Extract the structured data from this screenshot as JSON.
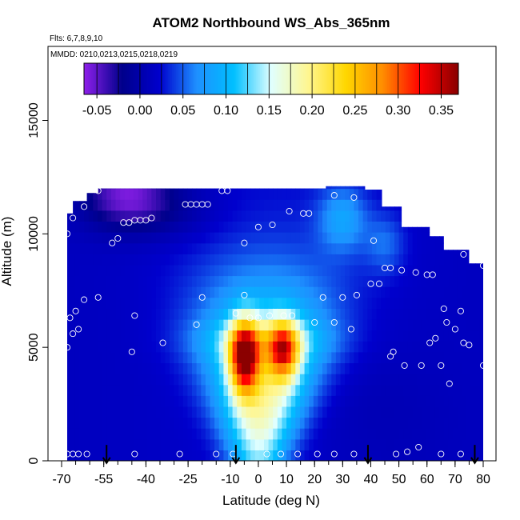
{
  "chart_data": {
    "type": "heatmap",
    "title": "ATOM2 Northbound WS_Abs_365nm",
    "flights_note": "Flts: 6,7,8,9,10",
    "dates_note": "MMDD: 0210,0213,0215,0218,0219",
    "xlabel": "Latitude (deg N)",
    "ylabel": "Altitude (m)",
    "xlim": [
      -70,
      80
    ],
    "ylim": [
      0,
      17500
    ],
    "x_ticks": [
      -70,
      -55,
      -40,
      -25,
      -10,
      0,
      10,
      20,
      30,
      40,
      50,
      60,
      70,
      80
    ],
    "x_tick_labels": [
      "-70",
      "-55",
      "-40",
      "-25",
      "-10",
      "0",
      "10",
      "20",
      "30",
      "40",
      "50",
      "60",
      "70",
      "80"
    ],
    "y_ticks": [
      0,
      5000,
      10000,
      15000
    ],
    "y_tick_labels": [
      "0",
      "5000",
      "10000",
      "15000"
    ],
    "colorbar": {
      "range": [
        -0.065,
        0.37
      ],
      "ticks": [
        -0.05,
        0.0,
        0.05,
        0.1,
        0.15,
        0.2,
        0.25,
        0.3,
        0.35
      ],
      "tick_labels": [
        "-0.05",
        "0.00",
        "0.05",
        "0.10",
        "0.15",
        "0.20",
        "0.25",
        "0.30",
        "0.35"
      ],
      "colors": [
        "#8b1fe8",
        "#00008b",
        "#0000cd",
        "#1e90ff",
        "#00bfff",
        "#e0ffff",
        "#fff68f",
        "#ffd700",
        "#ff8c00",
        "#ff0000",
        "#8b0000"
      ]
    },
    "descent_arrows_lat": [
      -54,
      -8,
      39,
      77
    ],
    "sample_points": [
      [
        -68,
        300
      ],
      [
        -66,
        300
      ],
      [
        -64,
        300
      ],
      [
        -61,
        300
      ],
      [
        -44,
        300
      ],
      [
        -28,
        300
      ],
      [
        -15,
        300
      ],
      [
        -9,
        300
      ],
      [
        3,
        300
      ],
      [
        8,
        300
      ],
      [
        14,
        300
      ],
      [
        21,
        300
      ],
      [
        27,
        300
      ],
      [
        34,
        300
      ],
      [
        49,
        300
      ],
      [
        53,
        400
      ],
      [
        57,
        600
      ],
      [
        65,
        300
      ],
      [
        72,
        300
      ],
      [
        -68,
        5000
      ],
      [
        -67,
        6300
      ],
      [
        -66,
        5600
      ],
      [
        -65,
        6600
      ],
      [
        -64,
        5800
      ],
      [
        -62,
        7100
      ],
      [
        -57,
        7200
      ],
      [
        -45,
        4800
      ],
      [
        -44,
        6400
      ],
      [
        -34,
        5200
      ],
      [
        -22,
        6000
      ],
      [
        -20,
        7200
      ],
      [
        -8,
        6500
      ],
      [
        -5,
        7300
      ],
      [
        -3,
        6300
      ],
      [
        0,
        6300
      ],
      [
        4,
        6400
      ],
      [
        9,
        6400
      ],
      [
        12,
        6400
      ],
      [
        20,
        6100
      ],
      [
        23,
        7200
      ],
      [
        27,
        6100
      ],
      [
        30,
        7200
      ],
      [
        33,
        5800
      ],
      [
        35,
        7300
      ],
      [
        40,
        7800
      ],
      [
        47,
        4600
      ],
      [
        48,
        4800
      ],
      [
        52,
        4200
      ],
      [
        58,
        4200
      ],
      [
        60,
        8200
      ],
      [
        61,
        5200
      ],
      [
        63,
        5400
      ],
      [
        65,
        4200
      ],
      [
        66,
        6700
      ],
      [
        67,
        6100
      ],
      [
        68,
        3400
      ],
      [
        70,
        5800
      ],
      [
        72,
        6600
      ],
      [
        73,
        5200
      ],
      [
        75,
        5100
      ],
      [
        80,
        4200
      ],
      [
        80,
        8600
      ],
      [
        -68,
        10000
      ],
      [
        -66,
        10700
      ],
      [
        -62,
        11200
      ],
      [
        -57,
        11900
      ],
      [
        -52,
        9600
      ],
      [
        -50,
        9800
      ],
      [
        -48,
        10500
      ],
      [
        -46,
        10500
      ],
      [
        -44,
        10600
      ],
      [
        -42,
        10600
      ],
      [
        -40,
        10600
      ],
      [
        -38,
        10700
      ],
      [
        -26,
        11300
      ],
      [
        -24,
        11300
      ],
      [
        -22,
        11300
      ],
      [
        -20,
        11300
      ],
      [
        -18,
        11300
      ],
      [
        -13,
        11900
      ],
      [
        -11,
        11900
      ],
      [
        -5,
        9600
      ],
      [
        0,
        10300
      ],
      [
        5,
        10400
      ],
      [
        11,
        11000
      ],
      [
        16,
        10900
      ],
      [
        18,
        10900
      ],
      [
        27,
        11700
      ],
      [
        34,
        11600
      ],
      [
        41,
        9700
      ],
      [
        43,
        7800
      ],
      [
        45,
        8500
      ],
      [
        47,
        8500
      ],
      [
        51,
        8400
      ],
      [
        56,
        8300
      ],
      [
        62,
        8200
      ],
      [
        73,
        9100
      ],
      [
        77,
        9000
      ]
    ]
  }
}
